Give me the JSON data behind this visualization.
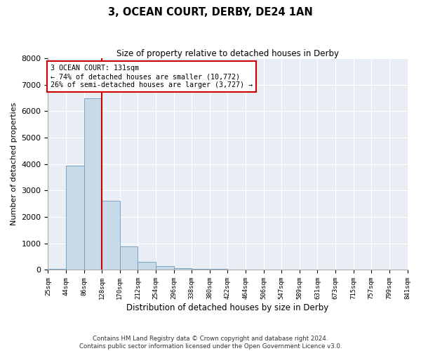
{
  "title": "3, OCEAN COURT, DERBY, DE24 1AN",
  "subtitle": "Size of property relative to detached houses in Derby",
  "xlabel": "Distribution of detached houses by size in Derby",
  "ylabel": "Number of detached properties",
  "footer_line1": "Contains HM Land Registry data © Crown copyright and database right 2024.",
  "footer_line2": "Contains public sector information licensed under the Open Government Licence v3.0.",
  "annotation_title": "3 OCEAN COURT: 131sqm",
  "annotation_line1": "← 74% of detached houses are smaller (10,772)",
  "annotation_line2": "26% of semi-detached houses are larger (3,727) →",
  "bar_heights": [
    40,
    3950,
    6500,
    2600,
    900,
    300,
    150,
    75,
    45,
    35,
    10,
    5,
    2,
    1,
    1,
    0,
    0,
    0,
    0,
    0
  ],
  "bar_color": "#c8d9e8",
  "bar_edge_color": "#6a9bbf",
  "red_line_bin": 3,
  "annotation_box_color": "#ffffff",
  "annotation_box_edge_color": "#cc0000",
  "plot_bg_color": "#e8eef4",
  "ylim": [
    0,
    8000
  ],
  "yticks": [
    0,
    1000,
    2000,
    3000,
    4000,
    5000,
    6000,
    7000,
    8000
  ],
  "grid_color": "#ffffff",
  "tick_labels": [
    "25sqm",
    "44sqm",
    "86sqm",
    "128sqm",
    "170sqm",
    "212sqm",
    "254sqm",
    "296sqm",
    "338sqm",
    "380sqm",
    "422sqm",
    "464sqm",
    "506sqm",
    "547sqm",
    "589sqm",
    "631sqm",
    "673sqm",
    "715sqm",
    "757sqm",
    "799sqm",
    "841sqm"
  ]
}
